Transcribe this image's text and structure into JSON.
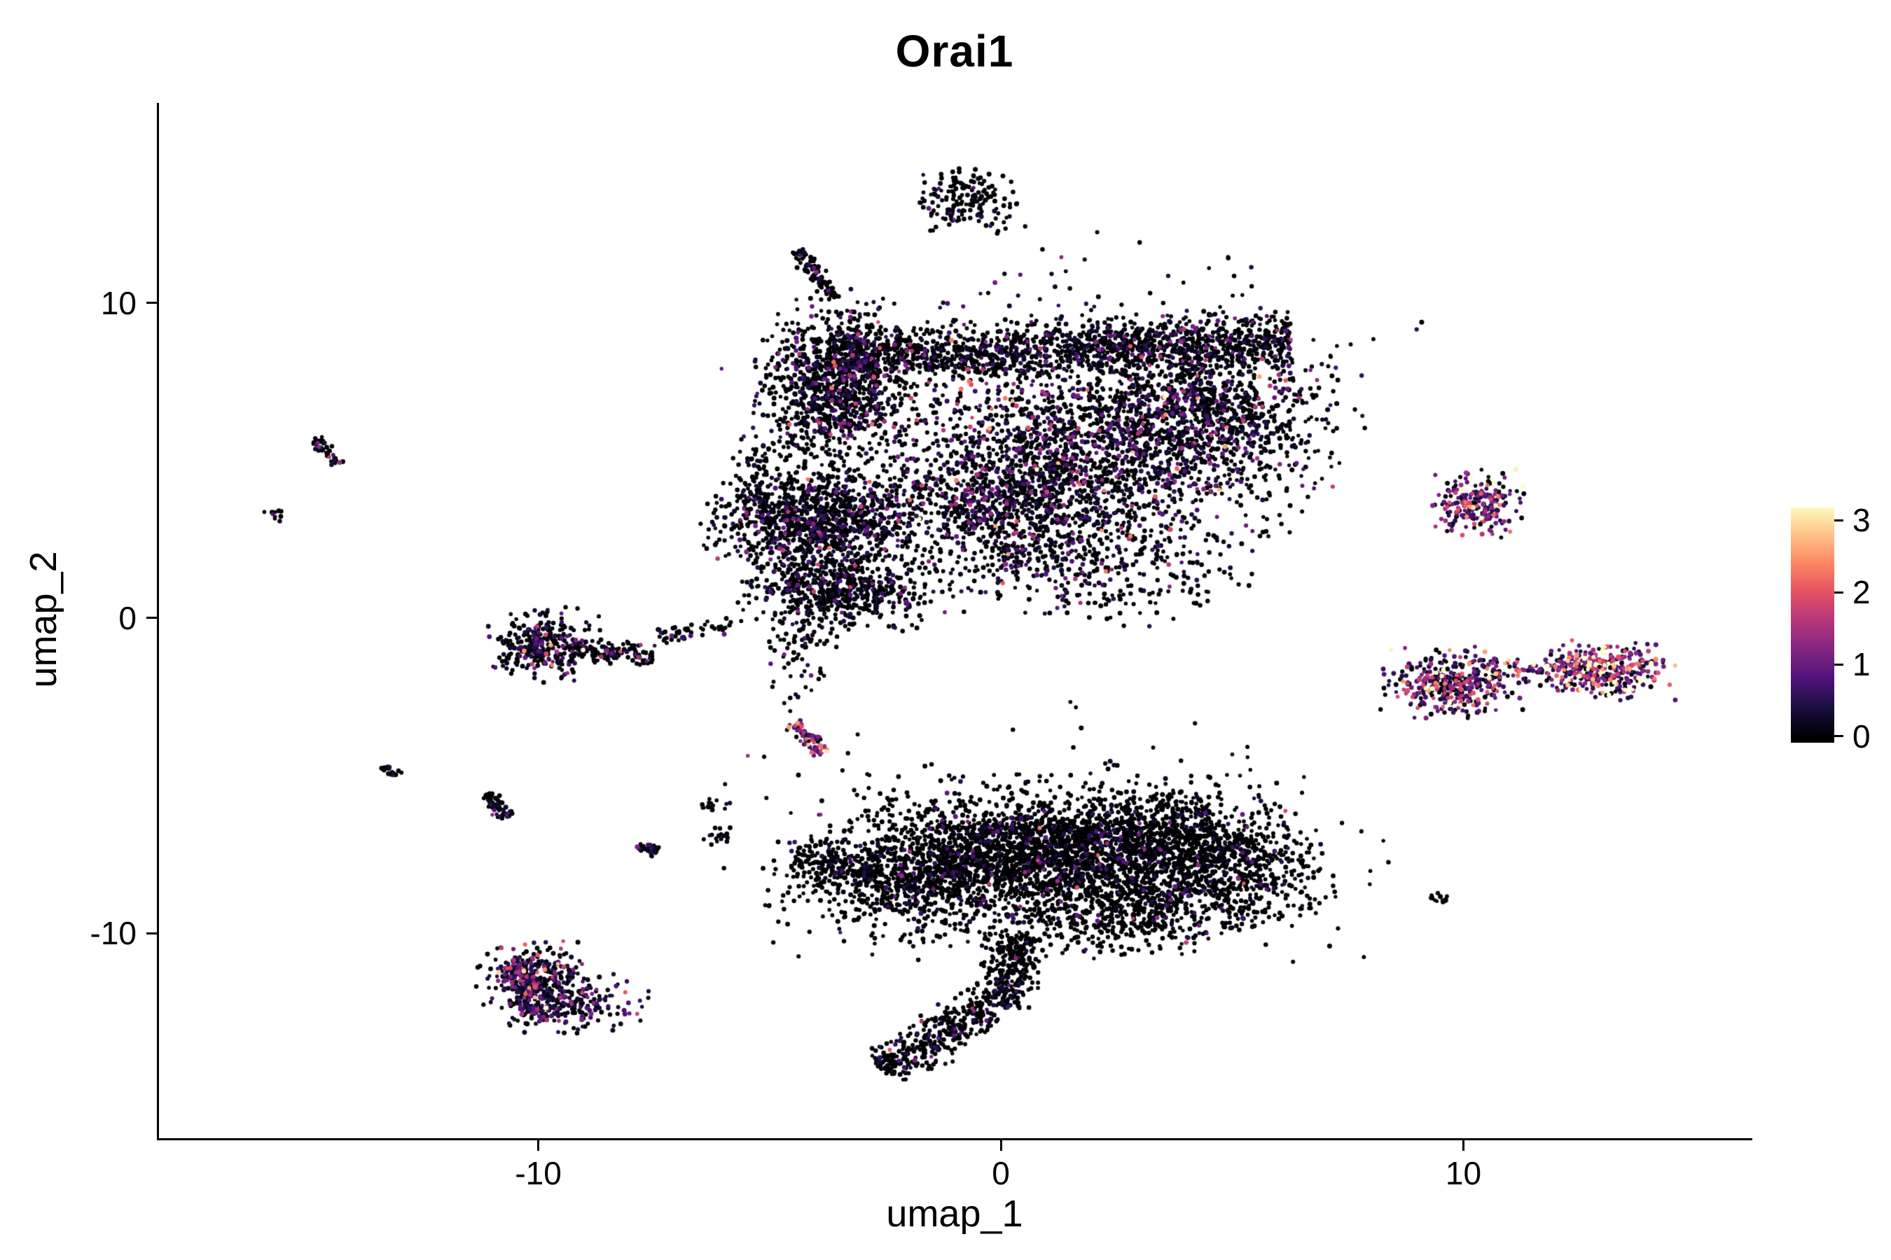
{
  "chart_data": {
    "type": "scatter",
    "subtype": "umap-feature-plot",
    "title": "Orai1",
    "xlabel": "umap_1",
    "ylabel": "umap_2",
    "xlim": [
      -18.2,
      16.2
    ],
    "ylim": [
      -16.5,
      16.3
    ],
    "grid": false,
    "axes_shown": [
      "left",
      "bottom"
    ],
    "x_ticks": [
      {
        "value": -10,
        "label": "-10"
      },
      {
        "value": 0,
        "label": "0"
      },
      {
        "value": 10,
        "label": "10"
      }
    ],
    "y_ticks": [
      {
        "value": 10,
        "label": "10"
      },
      {
        "value": 0,
        "label": "0"
      },
      {
        "value": -10,
        "label": "-10"
      }
    ],
    "legend": {
      "position": "right",
      "ticks": [
        {
          "value": 3,
          "label": "3"
        },
        {
          "value": 2,
          "label": "2"
        },
        {
          "value": 1,
          "label": "1"
        },
        {
          "value": 0,
          "label": "0"
        }
      ],
      "domain": [
        0,
        3.2
      ],
      "bar_value_range": [
        -0.09,
        3.18
      ]
    },
    "colormap": {
      "name": "magma",
      "stops": [
        {
          "t": 0,
          "color": "#000004"
        },
        {
          "t": 0.125,
          "color": "#180f3e"
        },
        {
          "t": 0.25,
          "color": "#51127c"
        },
        {
          "t": 0.375,
          "color": "#812581"
        },
        {
          "t": 0.5,
          "color": "#b5367a"
        },
        {
          "t": 0.625,
          "color": "#e55064"
        },
        {
          "t": 0.75,
          "color": "#fb8761"
        },
        {
          "t": 0.875,
          "color": "#fec287"
        },
        {
          "t": 1,
          "color": "#fcfdbf"
        }
      ]
    },
    "style": {
      "point_radius": 3.1,
      "axis_color": "#000000",
      "text_color": "#000000",
      "background": "#ffffff",
      "seed": 42
    },
    "clusters": [
      {
        "name": "top-band",
        "shape": "streak",
        "x": 1.4,
        "y": 8.55,
        "angle": 3,
        "len": 9.8,
        "thick": 0.45,
        "n": 1500,
        "p0": 0.72,
        "scale": 0.45,
        "shift": 0
      },
      {
        "name": "upper-left-knot",
        "shape": "blob",
        "x": -3.6,
        "y": 7.4,
        "sx": 0.75,
        "sy": 1.15,
        "n": 1000,
        "p0": 0.68,
        "scale": 0.45,
        "shift": 0
      },
      {
        "name": "upper-diagonal",
        "shape": "streak",
        "x": 2.0,
        "y": 5.3,
        "angle": 38,
        "len": 7.5,
        "thick": 0.95,
        "n": 700,
        "p0": 0.56,
        "scale": 0.5,
        "shift": 0
      },
      {
        "name": "upper-diffuse-core",
        "shape": "blob",
        "x": 2.2,
        "y": 5.6,
        "sx": 2.2,
        "sy": 1.5,
        "n": 1250,
        "p0": 0.58,
        "scale": 0.5,
        "shift": 0
      },
      {
        "name": "upper-diffuse-left",
        "shape": "blob",
        "x": -0.2,
        "y": 3.6,
        "sx": 1.7,
        "sy": 1.2,
        "n": 750,
        "p0": 0.6,
        "scale": 0.45,
        "shift": 0
      },
      {
        "name": "upper-diffuse-low",
        "shape": "blob",
        "x": 2.0,
        "y": 1.9,
        "sx": 1.6,
        "sy": 0.9,
        "n": 420,
        "p0": 0.6,
        "scale": 0.45,
        "shift": 0
      },
      {
        "name": "upper-right-edge",
        "shape": "blob",
        "x": 4.7,
        "y": 6.4,
        "sx": 1.1,
        "sy": 1.1,
        "n": 480,
        "p0": 0.6,
        "scale": 0.5,
        "shift": 0
      },
      {
        "name": "upper-halo",
        "shape": "blob",
        "x": 1.5,
        "y": 7.2,
        "sx": 3.2,
        "sy": 2.2,
        "n": 330,
        "p0": 0.6,
        "scale": 0.45,
        "shift": 0
      },
      {
        "name": "top-islet",
        "shape": "blob",
        "x": -0.7,
        "y": 13.3,
        "sx": 0.55,
        "sy": 0.5,
        "n": 170,
        "p0": 0.78,
        "scale": 0.35,
        "shift": 0
      },
      {
        "name": "top-streak",
        "shape": "streak",
        "x": -4.0,
        "y": 10.9,
        "angle": -62,
        "len": 1.7,
        "thick": 0.12,
        "n": 90,
        "p0": 0.85,
        "scale": 0.3,
        "shift": 0
      },
      {
        "name": "left-knot-upper",
        "shape": "blob",
        "x": -4.0,
        "y": 3.1,
        "sx": 1.05,
        "sy": 0.75,
        "n": 1000,
        "p0": 0.7,
        "scale": 0.4,
        "shift": 0
      },
      {
        "name": "left-knot-lower",
        "shape": "blob",
        "x": -3.5,
        "y": 0.9,
        "sx": 0.95,
        "sy": 0.55,
        "n": 600,
        "p0": 0.7,
        "scale": 0.4,
        "shift": 0
      },
      {
        "name": "left-knot-arm",
        "shape": "blob",
        "x": -5.0,
        "y": 4.7,
        "sx": 0.4,
        "sy": 0.7,
        "n": 90,
        "p0": 0.75,
        "scale": 0.35,
        "shift": 0
      },
      {
        "name": "left-knot-tail",
        "shape": "blob",
        "x": -4.3,
        "y": -1.0,
        "sx": 0.35,
        "sy": 0.9,
        "n": 80,
        "p0": 0.75,
        "scale": 0.35,
        "shift": 0
      },
      {
        "name": "left-ring",
        "shape": "blob",
        "x": -9.9,
        "y": -0.85,
        "sx": 0.55,
        "sy": 0.5,
        "n": 300,
        "p0": 0.55,
        "scale": 0.5,
        "shift": 0.1
      },
      {
        "name": "left-ring-tail",
        "shape": "streak",
        "x": -8.4,
        "y": -1.1,
        "angle": -6,
        "len": 1.8,
        "thick": 0.18,
        "n": 130,
        "p0": 0.6,
        "scale": 0.5,
        "shift": 0
      },
      {
        "name": "left-trail",
        "shape": "streak",
        "x": -6.6,
        "y": -0.4,
        "angle": 8,
        "len": 1.6,
        "thick": 0.15,
        "n": 45,
        "p0": 0.7,
        "scale": 0.4,
        "shift": 0
      },
      {
        "name": "tiny-nw-streak",
        "shape": "streak",
        "x": -14.6,
        "y": 5.3,
        "angle": -63,
        "len": 0.95,
        "thick": 0.09,
        "n": 50,
        "p0": 0.7,
        "scale": 0.5,
        "shift": 0
      },
      {
        "name": "tiny-nw-dot",
        "shape": "blob",
        "x": -15.7,
        "y": 3.3,
        "sx": 0.1,
        "sy": 0.1,
        "n": 10,
        "p0": 0.8,
        "scale": 0.3,
        "shift": 0
      },
      {
        "name": "tiny-w-dash",
        "shape": "streak",
        "x": -13.2,
        "y": -4.85,
        "angle": -40,
        "len": 0.45,
        "thick": 0.08,
        "n": 18,
        "p0": 0.8,
        "scale": 0.3,
        "shift": 0
      },
      {
        "name": "tiny-w-streak",
        "shape": "streak",
        "x": -10.9,
        "y": -5.95,
        "angle": -60,
        "len": 0.85,
        "thick": 0.1,
        "n": 55,
        "p0": 0.75,
        "scale": 0.4,
        "shift": 0
      },
      {
        "name": "tiny-sw-dash",
        "shape": "streak",
        "x": -7.6,
        "y": -7.3,
        "angle": -30,
        "len": 0.5,
        "thick": 0.09,
        "n": 30,
        "p0": 0.75,
        "scale": 0.4,
        "shift": 0
      },
      {
        "name": "tiny-w-dots2",
        "shape": "blob",
        "x": -6.3,
        "y": -5.9,
        "sx": 0.18,
        "sy": 0.12,
        "n": 14,
        "p0": 0.8,
        "scale": 0.3,
        "shift": 0
      },
      {
        "name": "tiny-w-dots3",
        "shape": "blob",
        "x": -6.1,
        "y": -6.9,
        "sx": 0.15,
        "sy": 0.12,
        "n": 16,
        "p0": 0.8,
        "scale": 0.3,
        "shift": 0
      },
      {
        "name": "hot-streak",
        "shape": "streak",
        "x": -4.2,
        "y": -3.75,
        "angle": -55,
        "len": 1.3,
        "thick": 0.1,
        "n": 70,
        "p0": 0.15,
        "scale": 1.0,
        "shift": 0.5
      },
      {
        "name": "right-islet-upper",
        "shape": "blob",
        "x": 10.3,
        "y": 3.6,
        "sx": 0.42,
        "sy": 0.48,
        "n": 230,
        "p0": 0.3,
        "scale": 0.85,
        "shift": 0.4
      },
      {
        "name": "right-islet-mid",
        "shape": "blob",
        "x": 9.8,
        "y": -2.1,
        "sx": 0.68,
        "sy": 0.5,
        "n": 380,
        "p0": 0.35,
        "scale": 0.8,
        "shift": 0.4
      },
      {
        "name": "right-dotted-trail",
        "shape": "streak",
        "x": 11.6,
        "y": -1.6,
        "angle": 5,
        "len": 1.0,
        "thick": 0.08,
        "n": 35,
        "p0": 0.3,
        "scale": 0.9,
        "shift": 0.4
      },
      {
        "name": "right-islet-east",
        "shape": "blob",
        "x": 13.0,
        "y": -1.65,
        "sx": 0.68,
        "sy": 0.4,
        "n": 340,
        "p0": 0.25,
        "scale": 0.95,
        "shift": 0.4
      },
      {
        "name": "right-tiny-dash",
        "shape": "streak",
        "x": 9.45,
        "y": -8.9,
        "angle": -25,
        "len": 0.4,
        "thick": 0.07,
        "n": 14,
        "p0": 0.85,
        "scale": 0.3,
        "shift": 0
      },
      {
        "name": "whale-body",
        "shape": "blob",
        "x": 1.8,
        "y": -7.6,
        "sx": 2.2,
        "sy": 1.1,
        "n": 2100,
        "p0": 0.86,
        "scale": 0.35,
        "shift": 0
      },
      {
        "name": "whale-band",
        "shape": "streak",
        "x": 1.4,
        "y": -7.1,
        "angle": 10,
        "len": 6.5,
        "thick": 0.55,
        "n": 700,
        "p0": 0.86,
        "scale": 0.35,
        "shift": 0
      },
      {
        "name": "whale-head",
        "shape": "blob",
        "x": -1.6,
        "y": -8.1,
        "sx": 1.5,
        "sy": 0.95,
        "n": 850,
        "p0": 0.86,
        "scale": 0.35,
        "shift": 0
      },
      {
        "name": "whale-nose",
        "shape": "streak",
        "x": -3.6,
        "y": -7.8,
        "angle": -18,
        "len": 1.8,
        "thick": 0.3,
        "n": 140,
        "p0": 0.85,
        "scale": 0.3,
        "shift": 0
      },
      {
        "name": "whale-east",
        "shape": "blob",
        "x": 5.0,
        "y": -7.9,
        "sx": 1.0,
        "sy": 0.85,
        "n": 420,
        "p0": 0.86,
        "scale": 0.35,
        "shift": 0
      },
      {
        "name": "whale-belly",
        "shape": "blob",
        "x": 2.8,
        "y": -9.4,
        "sx": 1.2,
        "sy": 0.6,
        "n": 320,
        "p0": 0.86,
        "scale": 0.35,
        "shift": 0
      },
      {
        "name": "whale-halo",
        "shape": "blob",
        "x": 1.3,
        "y": -7.4,
        "sx": 3.1,
        "sy": 1.7,
        "n": 400,
        "p0": 0.82,
        "scale": 0.35,
        "shift": 0
      },
      {
        "name": "whale-tail-upper",
        "shape": "streak",
        "x": 0.15,
        "y": -11.2,
        "angle": -102,
        "len": 2.3,
        "thick": 0.32,
        "n": 300,
        "p0": 0.85,
        "scale": 0.3,
        "shift": 0
      },
      {
        "name": "whale-tail-lower",
        "shape": "streak",
        "x": -1.45,
        "y": -13.35,
        "angle": -140,
        "len": 3.0,
        "thick": 0.35,
        "n": 330,
        "p0": 0.82,
        "scale": 0.33,
        "shift": 0
      },
      {
        "name": "sw-crescent-top",
        "shape": "blob",
        "x": -10.1,
        "y": -11.2,
        "sx": 0.55,
        "sy": 0.4,
        "n": 210,
        "p0": 0.5,
        "scale": 0.55,
        "shift": 0.2
      },
      {
        "name": "sw-crescent-bottom",
        "shape": "blob",
        "x": -9.4,
        "y": -12.2,
        "sx": 0.75,
        "sy": 0.45,
        "n": 260,
        "p0": 0.5,
        "scale": 0.55,
        "shift": 0.2
      },
      {
        "name": "sw-crescent-arc",
        "shape": "streak",
        "x": -10.3,
        "y": -11.9,
        "angle": -74,
        "len": 2.0,
        "thick": 0.2,
        "n": 140,
        "p0": 0.5,
        "scale": 0.55,
        "shift": 0.2
      },
      {
        "name": "stray-dot",
        "shape": "blob",
        "x": 1.55,
        "y": -2.75,
        "sx": 0.06,
        "sy": 0.06,
        "n": 2,
        "p0": 0.5,
        "scale": 0.4,
        "shift": 0
      }
    ]
  }
}
